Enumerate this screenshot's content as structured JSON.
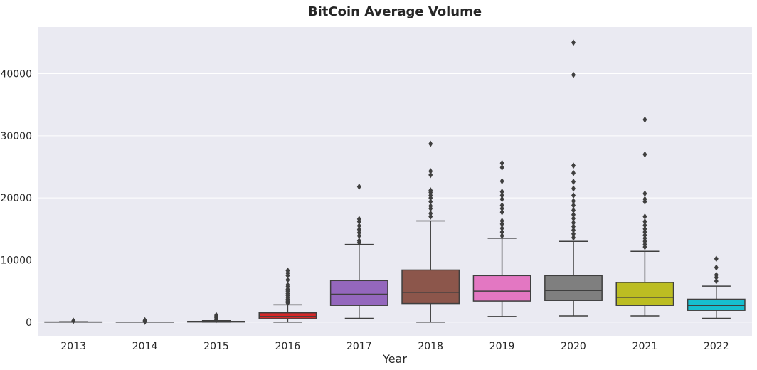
{
  "chart_data": {
    "type": "box",
    "title": "BitCoin Average Volume",
    "xlabel": "Year",
    "ylabel": "",
    "ylim": [
      -2200,
      47500
    ],
    "yticks": [
      0,
      10000,
      20000,
      30000,
      40000
    ],
    "ytick_labels": [
      "0",
      "10000",
      "20000",
      "30000",
      "40000"
    ],
    "grid": true,
    "categories": [
      "2013",
      "2014",
      "2015",
      "2016",
      "2017",
      "2018",
      "2019",
      "2020",
      "2021",
      "2022"
    ],
    "boxes": [
      {
        "year": "2013",
        "color": "#1f77b4",
        "whislo": 0,
        "q1": 0,
        "med": 5,
        "q3": 20,
        "whishi": 60,
        "fliers": [
          200
        ]
      },
      {
        "year": "2014",
        "color": "#ff7f0e",
        "whislo": 0,
        "q1": 0,
        "med": 0,
        "q3": 0,
        "whishi": 0,
        "fliers": [
          60,
          120,
          200,
          290
        ]
      },
      {
        "year": "2015",
        "color": "#2ca02c",
        "whislo": 0,
        "q1": 20,
        "med": 60,
        "q3": 120,
        "whishi": 230,
        "fliers": [
          350,
          500,
          700,
          900,
          1100
        ]
      },
      {
        "year": "2016",
        "color": "#d62728",
        "whislo": 0,
        "q1": 550,
        "med": 900,
        "q3": 1500,
        "whishi": 2800,
        "fliers": [
          3100,
          3400,
          3700,
          4000,
          4300,
          4600,
          5000,
          5300,
          5700,
          6000,
          6800,
          7500,
          7900,
          8300
        ]
      },
      {
        "year": "2017",
        "color": "#9467bd",
        "whislo": 600,
        "q1": 2700,
        "med": 4500,
        "q3": 6700,
        "whishi": 12500,
        "fliers": [
          12800,
          13100,
          13900,
          14400,
          14900,
          15500,
          16200,
          16600,
          21800
        ]
      },
      {
        "year": "2018",
        "color": "#8c564b",
        "whislo": 0,
        "q1": 3000,
        "med": 4800,
        "q3": 8400,
        "whishi": 16300,
        "fliers": [
          17000,
          17500,
          18300,
          18700,
          19400,
          20000,
          20400,
          20900,
          21200,
          23700,
          24300,
          28700
        ]
      },
      {
        "year": "2019",
        "color": "#e377c2",
        "whislo": 900,
        "q1": 3400,
        "med": 5000,
        "q3": 7500,
        "whishi": 13500,
        "fliers": [
          13900,
          14500,
          15100,
          15800,
          16300,
          17700,
          18300,
          18800,
          19800,
          20400,
          21000,
          22700,
          24900,
          25600
        ]
      },
      {
        "year": "2020",
        "color": "#7f7f7f",
        "whislo": 1000,
        "q1": 3500,
        "med": 5100,
        "q3": 7500,
        "whishi": 13000,
        "fliers": [
          13600,
          14200,
          14800,
          15400,
          16000,
          16700,
          17300,
          18000,
          18800,
          19500,
          20400,
          21500,
          22600,
          24000,
          25200,
          39800,
          45000
        ]
      },
      {
        "year": "2021",
        "color": "#bcbd22",
        "whislo": 1000,
        "q1": 2700,
        "med": 4000,
        "q3": 6400,
        "whishi": 11400,
        "fliers": [
          12100,
          12500,
          13000,
          13500,
          14000,
          14500,
          15000,
          15600,
          16200,
          17000,
          19400,
          19800,
          20700,
          27000,
          32600
        ]
      },
      {
        "year": "2022",
        "color": "#17becf",
        "whislo": 600,
        "q1": 1900,
        "med": 2700,
        "q3": 3700,
        "whishi": 5800,
        "fliers": [
          6600,
          7200,
          7600,
          8800,
          10200
        ]
      }
    ]
  }
}
